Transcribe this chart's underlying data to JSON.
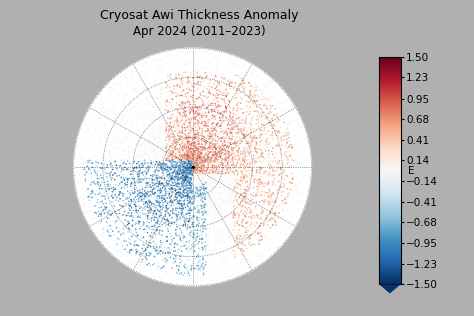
{
  "title_line1": "Cryosat Awi Thickness Anomaly",
  "title_line2": "Apr 2024 (2011–2023)",
  "colorbar_ticks": [
    1.5,
    1.23,
    0.95,
    0.68,
    0.41,
    0.14,
    0,
    -0.14,
    -0.41,
    -0.68,
    -0.95,
    -1.23,
    -1.5
  ],
  "colorbar_tick_labels": [
    "1.50",
    "1.23",
    "0.95",
    "0.68",
    "0.41",
    "0.14",
    "E",
    "−0.14",
    "−0.41",
    "−0.68",
    "−0.95",
    "−1.23",
    "−1.50"
  ],
  "vmin": -1.5,
  "vmax": 1.5,
  "cmap_neg": [
    "#08306b",
    "#08519c",
    "#2171b5",
    "#4292c6",
    "#6baed6",
    "#9ecae1",
    "#c6dbef",
    "#deebf7",
    "#f7fbff"
  ],
  "cmap_pos": [
    "#fff5f0",
    "#fee0d2",
    "#fcbba1",
    "#fc9272",
    "#fb6a4a",
    "#ef3b2c",
    "#cb181d",
    "#a50f15",
    "#67000d"
  ],
  "bg_color": "#b0b0b0",
  "map_bg": "#ffffff",
  "title_fontsize": 9,
  "colorbar_label_fontsize": 7.5,
  "fig_width": 4.74,
  "fig_height": 3.16,
  "dpi": 100
}
